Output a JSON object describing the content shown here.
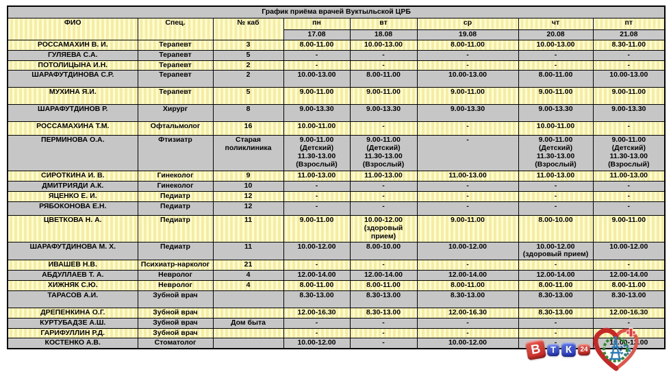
{
  "title": "График приёма врачей Вуктыльской ЦРБ",
  "table": {
    "col_fio": "ФИО",
    "col_spec": "Спец.",
    "col_cab": "№ каб",
    "days": [
      {
        "label": "пн",
        "date": "17.08"
      },
      {
        "label": "вт",
        "date": "18.08"
      },
      {
        "label": "ср",
        "date": "19.08"
      },
      {
        "label": "чт",
        "date": "20.08"
      },
      {
        "label": "пт",
        "date": "21.08"
      }
    ],
    "rows": [
      {
        "fio": "РОССАМАХИН В. И.",
        "spec": "Терапевт",
        "cab": "3",
        "times": [
          "8.00-11.00",
          "10.00-13.00",
          "8.00-11.00",
          "10.00-13.00",
          "8.30-11.00"
        ],
        "h": "s"
      },
      {
        "fio": "ГУЛЯЕВА С.А.",
        "spec": "Терапевт",
        "cab": "5",
        "times": [
          "-",
          "-",
          "-",
          "-",
          "-"
        ],
        "h": "s"
      },
      {
        "fio": "ПОТОЛИЦЫНА И.Н.",
        "spec": "Терапевт",
        "cab": "2",
        "times": [
          "-",
          "-",
          "-",
          "-",
          "-"
        ],
        "h": "s"
      },
      {
        "fio": "ШАРАФУТДИНОВА С.Р.",
        "spec": "Терапевт",
        "cab": "2",
        "times": [
          "10.00-13.00",
          "8.00-11.00",
          "10.00-13.00",
          "8.00-11.00",
          "10.00-13.00"
        ],
        "h": "t"
      },
      {
        "fio": "МУХИНА Я.И.",
        "spec": "Терапевт",
        "cab": "5",
        "times": [
          "9.00-11.00",
          "9.00-11.00",
          "9.00-11.00",
          "9.00-11.00",
          "9.00-11.00"
        ],
        "h": "t"
      },
      {
        "fio": "ШАРАФУТДИНОВ Р.",
        "spec": "Хирург",
        "cab": "8",
        "times": [
          "9.00-13.30",
          "9.00-13.30",
          "9.00-13.30",
          "9.00-13.30",
          "9.00-13.30"
        ],
        "h": "t"
      },
      {
        "fio": "РОССАМАХИНА Т.М.",
        "spec": "Офтальмолог",
        "cab": "16",
        "times": [
          "10.00-11.00",
          "-",
          "-",
          "10.00-11.00",
          "-"
        ],
        "h": "m"
      },
      {
        "fio": "ПЕРМИНОВА О.А.",
        "spec": "Фтизиатр",
        "cab": "Старая\nполиклиника",
        "times": [
          "9.00-11.00\n(Детский)\n11.30-13.00\n(Взрослый)",
          "9.00-11.00\n(Детский)\n11.30-13.00\n(Взрослый)",
          "-",
          "9.00-11.00\n(Детский)\n11.30-13.00\n(Взрослый)",
          "9.00-11.00\n(Детский)\n11.30-13.00\n(Взрослый)"
        ],
        "h": "x"
      },
      {
        "fio": "СИРОТКИНА И. В.",
        "spec": "Гинеколог",
        "cab": "9",
        "times": [
          "11.00-13.00",
          "11.00-13.00",
          "11.00-13.00",
          "11.00-13.00",
          "11.00-13.00"
        ],
        "h": "s"
      },
      {
        "fio": "ДМИТРИЯДИ А.К.",
        "spec": "Гинеколог",
        "cab": "10",
        "times": [
          "-",
          "-",
          "-",
          "-",
          "-"
        ],
        "h": "s"
      },
      {
        "fio": "ЯЦЕНКО Е. И.",
        "spec": "Педиатр",
        "cab": "12",
        "times": [
          "-",
          "-",
          "-",
          "-",
          "-"
        ],
        "h": "s"
      },
      {
        "fio": "РЯБОКОНОВА Е.Н.",
        "spec": "Педиатр",
        "cab": "12",
        "times": [
          "-",
          "-",
          "-",
          "-",
          "-"
        ],
        "h": "m"
      },
      {
        "fio": "ЦВЕТКОВА Н. А.",
        "spec": "Педиатр",
        "cab": "11",
        "times": [
          "9.00-11.00",
          "10.00-12.00\n(здоровый прием)",
          "9.00-11.00",
          "8.00-10.00",
          "9.00-11.00"
        ],
        "h": "t"
      },
      {
        "fio": "ШАРАФУТДИНОВА М. Х.",
        "spec": "Педиатр",
        "cab": "11",
        "times": [
          "10.00-12.00",
          "8.00-10.00",
          "10.00-12.00",
          "10.00-12.00\n(здоровый прием)",
          "10.00-12.00"
        ],
        "h": "t"
      },
      {
        "fio": "ИВАШЕВ Н.В.",
        "spec": "Психиатр-нарколог",
        "cab": "21",
        "times": [
          "-",
          "-",
          "-",
          "-",
          "-"
        ],
        "h": "s"
      },
      {
        "fio": "АБДУЛЛАЕВ Т. А.",
        "spec": "Невролог",
        "cab": "4",
        "times": [
          "12.00-14.00",
          "12.00-14.00",
          "12.00-14.00",
          "12.00-14.00",
          "12.00-14.00"
        ],
        "h": "s"
      },
      {
        "fio": "ХИЖНЯК С.Ю.",
        "spec": "Невролог",
        "cab": "4",
        "times": [
          "8.00-11.00",
          "8.00-11.00",
          "8.00-11.00",
          "8.00-11.00",
          "8.00-11.00"
        ],
        "h": "s"
      },
      {
        "fio": "ТАРАСОВ А.И.",
        "spec": "Зубной врач",
        "cab": "",
        "times": [
          "8.30-13.00",
          "8.30-13.00",
          "8.30-13.00",
          "8.30-13.00",
          "8.30-13.00"
        ],
        "h": "t"
      },
      {
        "fio": "ДРЕПЕНКИНА О.Г.",
        "spec": "Зубной врач",
        "cab": "",
        "times": [
          "12.00-16.30",
          "8.30-13.00",
          "12.00-16.30",
          "8.30-13.00",
          "12.00-16.30"
        ],
        "h": "s"
      },
      {
        "fio": "КУРТУБАДЗЕ А.Ш.",
        "spec": "Зубной врач",
        "cab": "Дом быта",
        "times": [
          "-",
          "-",
          "-",
          "-",
          "-"
        ],
        "h": "s"
      },
      {
        "fio": "ГАРИФУЛЛИН Р.Д.",
        "spec": "Зубной врач",
        "cab": "",
        "times": [
          "-",
          "-",
          "-",
          "-",
          "-"
        ],
        "h": "s"
      },
      {
        "fio": "КОСТЕНКО А.В.",
        "spec": "Стоматолог",
        "cab": "",
        "times": [
          "10.00-12.00",
          "-",
          "10.00-12.00",
          "-",
          "10.00-12.00"
        ],
        "h": "s"
      }
    ]
  },
  "footer": {
    "vtk_tiles": [
      "В",
      "Т",
      "К",
      "24"
    ]
  },
  "colors": {
    "row_yellow": "#FAF3A8",
    "row_gray": "#C6C6C6",
    "border": "#000000",
    "logo_red": "#C8221F",
    "logo_blue": "#2B3BC0",
    "heart_red": "#D23530",
    "wreath_green": "#2E8B2E",
    "derrick_blue": "#2B7BB9"
  }
}
